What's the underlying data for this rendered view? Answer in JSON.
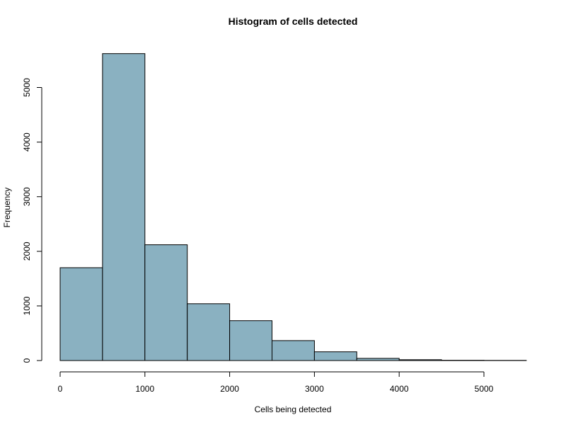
{
  "colors": {
    "bar_fill": "#8AB1C1",
    "bar_stroke": "#000000",
    "background": "#ffffff"
  },
  "chart_data": {
    "type": "bar",
    "title": "Histogram of cells detected",
    "xlabel": "Cells being detected",
    "ylabel": "Frequency",
    "bin_edges": [
      0,
      500,
      1000,
      1500,
      2000,
      2500,
      3000,
      3500,
      4000,
      4500,
      5000,
      5500
    ],
    "values": [
      1700,
      5620,
      2120,
      1040,
      730,
      365,
      160,
      40,
      15,
      5,
      3
    ],
    "xlim": [
      0,
      5500
    ],
    "ylim": [
      0,
      5620
    ],
    "x_ticks": [
      0,
      1000,
      2000,
      3000,
      4000,
      5000
    ],
    "x_tick_labels": [
      "0",
      "1000",
      "2000",
      "3000",
      "4000",
      "5000"
    ],
    "y_ticks": [
      0,
      1000,
      2000,
      3000,
      4000,
      5000
    ],
    "y_tick_labels": [
      "0",
      "1000",
      "2000",
      "3000",
      "4000",
      "5000"
    ],
    "grid": false,
    "legend": "none"
  }
}
